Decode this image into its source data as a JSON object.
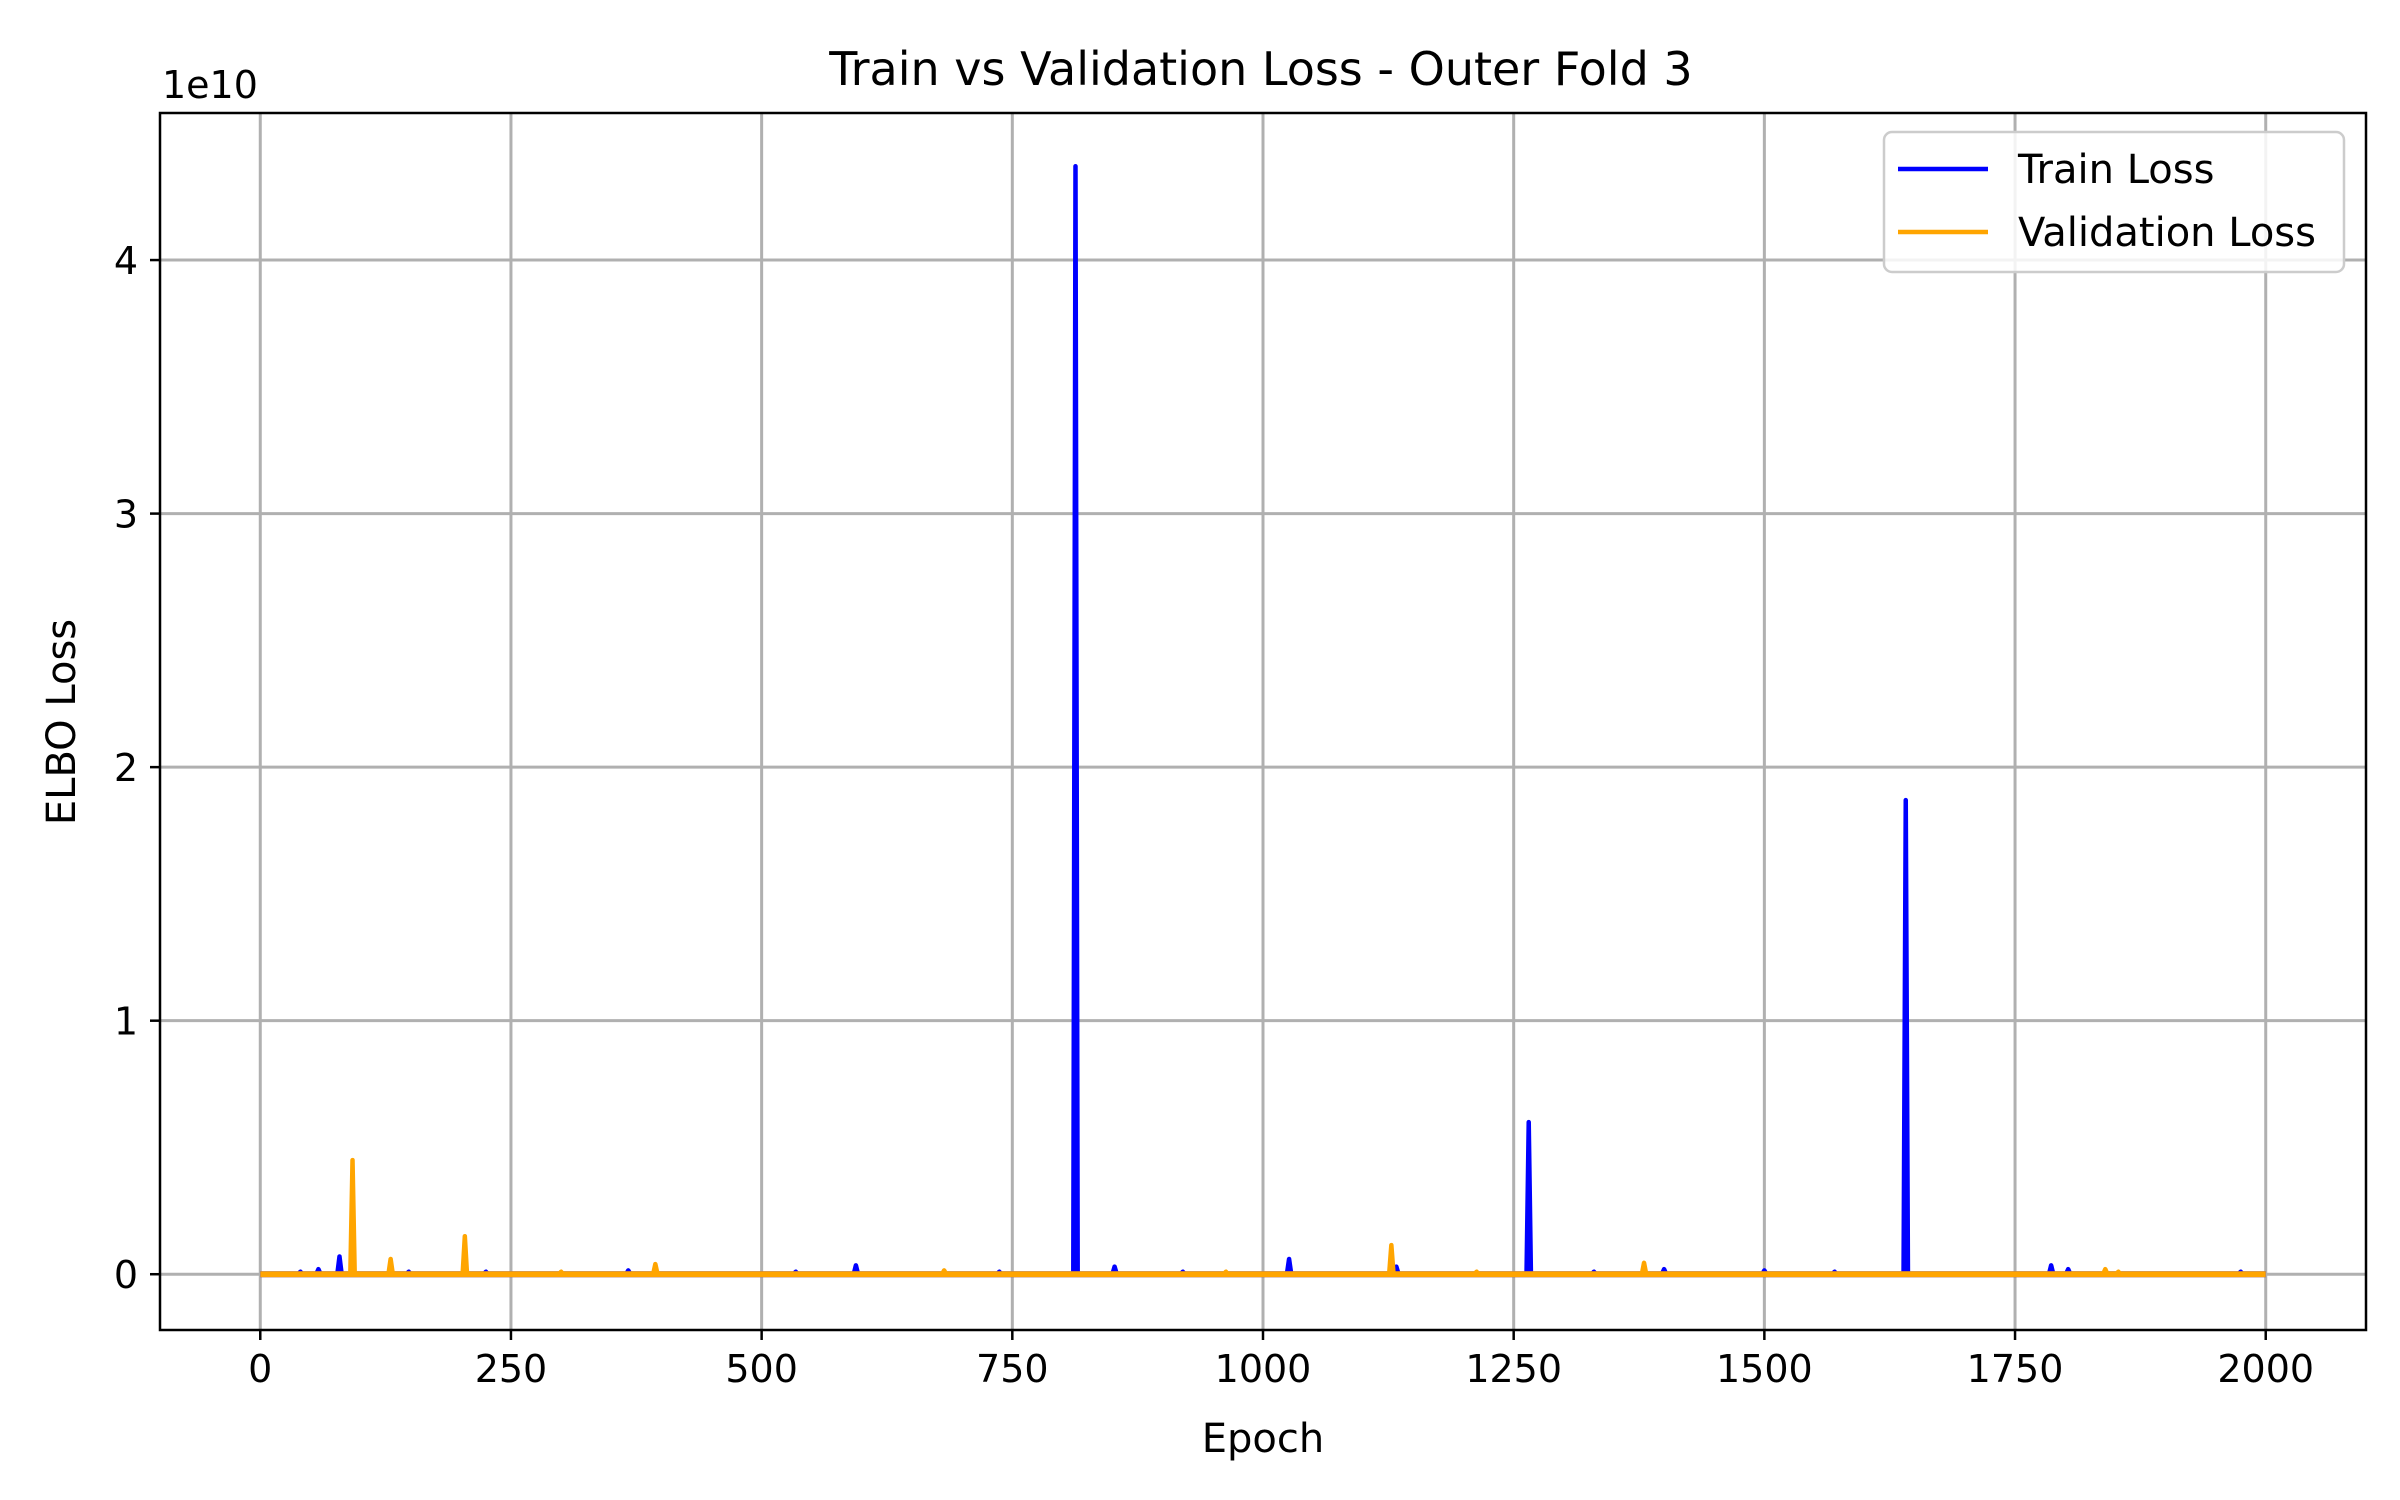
{
  "chart_data": {
    "type": "line",
    "title": "Train vs Validation Loss - Outer Fold 3",
    "xlabel": "Epoch",
    "ylabel": "ELBO Loss",
    "y_scale_label": "1e10",
    "xlim": [
      -100,
      2100
    ],
    "ylim": [
      -0.22,
      4.58
    ],
    "x_ticks": [
      0,
      250,
      500,
      750,
      1000,
      1250,
      1500,
      1750,
      2000
    ],
    "x_tick_labels": [
      "0",
      "250",
      "500",
      "750",
      "1000",
      "1250",
      "1500",
      "1750",
      "2000"
    ],
    "y_ticks": [
      0,
      1,
      2,
      3,
      4
    ],
    "y_tick_labels": [
      "0",
      "1",
      "2",
      "3",
      "4"
    ],
    "grid": true,
    "legend_position": "top-right",
    "x_range": [
      0,
      2000
    ],
    "series": [
      {
        "name": "Train Loss",
        "color": "#0000ff",
        "spikes": [
          [
            40,
            0.01
          ],
          [
            58,
            0.02
          ],
          [
            79,
            0.07
          ],
          [
            148,
            0.01
          ],
          [
            225,
            0.01
          ],
          [
            367,
            0.015
          ],
          [
            534,
            0.01
          ],
          [
            594,
            0.035
          ],
          [
            737,
            0.01
          ],
          [
            813,
            4.37
          ],
          [
            852,
            0.03
          ],
          [
            920,
            0.01
          ],
          [
            1026,
            0.06
          ],
          [
            1133,
            0.03
          ],
          [
            1265,
            0.6
          ],
          [
            1330,
            0.01
          ],
          [
            1400,
            0.02
          ],
          [
            1500,
            0.015
          ],
          [
            1570,
            0.01
          ],
          [
            1641,
            1.87
          ],
          [
            1786,
            0.035
          ],
          [
            1803,
            0.02
          ],
          [
            1975,
            0.01
          ]
        ]
      },
      {
        "name": "Validation Loss",
        "color": "#ffa500",
        "spikes": [
          [
            92,
            0.45
          ],
          [
            130,
            0.06
          ],
          [
            204,
            0.15
          ],
          [
            300,
            0.01
          ],
          [
            394,
            0.04
          ],
          [
            682,
            0.015
          ],
          [
            963,
            0.01
          ],
          [
            1128,
            0.115
          ],
          [
            1213,
            0.01
          ],
          [
            1380,
            0.045
          ],
          [
            1840,
            0.02
          ],
          [
            1853,
            0.01
          ]
        ]
      }
    ]
  }
}
